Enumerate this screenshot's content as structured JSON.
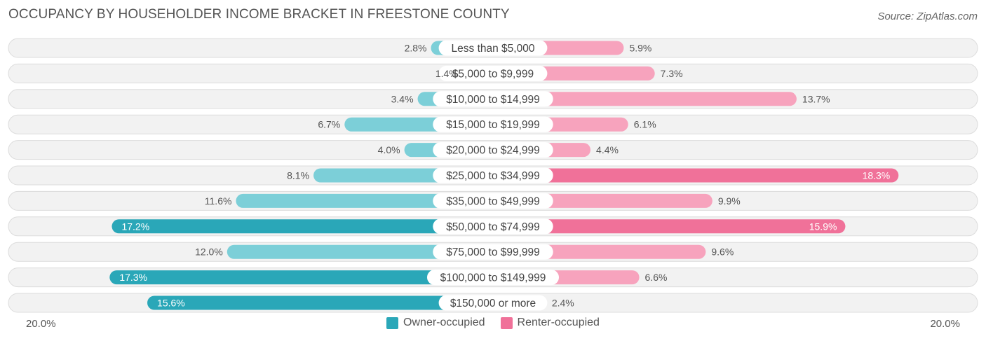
{
  "title": "OCCUPANCY BY HOUSEHOLDER INCOME BRACKET IN FREESTONE COUNTY",
  "source": "Source: ZipAtlas.com",
  "colors": {
    "owner_strong": "#2aa7b8",
    "owner_light": "#7ccfd8",
    "renter_strong": "#f07199",
    "renter_light": "#f7a3bd",
    "row_bg": "#efefef",
    "row_border": "#dcdcdc"
  },
  "axis": {
    "left_label": "20.0%",
    "right_label": "20.0%"
  },
  "legend": {
    "owner": "Owner-occupied",
    "renter": "Renter-occupied"
  },
  "chart_data": {
    "type": "bar",
    "orientation": "diverging-horizontal",
    "title": "OCCUPANCY BY HOUSEHOLDER INCOME BRACKET IN FREESTONE COUNTY",
    "xlim": [
      -20,
      20
    ],
    "categories": [
      "Less than $5,000",
      "$5,000 to $9,999",
      "$10,000 to $14,999",
      "$15,000 to $19,999",
      "$20,000 to $24,999",
      "$25,000 to $34,999",
      "$35,000 to $49,999",
      "$50,000 to $74,999",
      "$75,000 to $99,999",
      "$100,000 to $149,999",
      "$150,000 or more"
    ],
    "series": [
      {
        "name": "Owner-occupied",
        "values": [
          2.8,
          1.4,
          3.4,
          6.7,
          4.0,
          8.1,
          11.6,
          17.2,
          12.0,
          17.3,
          15.6
        ]
      },
      {
        "name": "Renter-occupied",
        "values": [
          5.9,
          7.3,
          13.7,
          6.1,
          4.4,
          18.3,
          9.9,
          15.9,
          9.6,
          6.6,
          2.4
        ]
      }
    ],
    "value_labels": {
      "owner": [
        "2.8%",
        "1.4%",
        "3.4%",
        "6.7%",
        "4.0%",
        "8.1%",
        "11.6%",
        "17.2%",
        "12.0%",
        "17.3%",
        "15.6%"
      ],
      "renter": [
        "5.9%",
        "7.3%",
        "13.7%",
        "6.1%",
        "4.4%",
        "18.3%",
        "9.9%",
        "15.9%",
        "9.6%",
        "6.6%",
        "2.4%"
      ]
    }
  }
}
